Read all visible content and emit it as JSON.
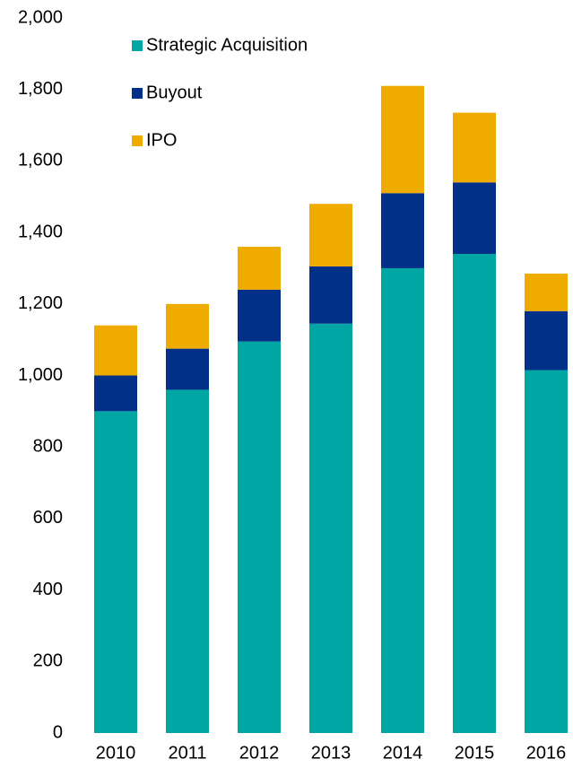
{
  "chart_data": {
    "type": "stacked_bar",
    "categories": [
      "2010",
      "2011",
      "2012",
      "2013",
      "2014",
      "2015",
      "2016"
    ],
    "series": [
      {
        "name": "Strategic Acquisition",
        "color": "#00a6a4",
        "values": [
          900,
          960,
          1095,
          1145,
          1300,
          1340,
          1015
        ]
      },
      {
        "name": "Buyout",
        "color": "#003087",
        "values": [
          100,
          115,
          145,
          160,
          210,
          200,
          165
        ]
      },
      {
        "name": "IPO",
        "color": "#f0ab00",
        "values": [
          140,
          125,
          120,
          175,
          300,
          195,
          105
        ]
      }
    ],
    "ylim": [
      0,
      2000
    ],
    "yticks": [
      0,
      200,
      400,
      600,
      800,
      {
        "value": 1000,
        "label": "1,000"
      },
      {
        "value": 1200,
        "label": "1,200"
      },
      {
        "value": 1400,
        "label": "1,400"
      },
      {
        "value": 1600,
        "label": "1,600"
      },
      {
        "value": 1800,
        "label": "1,800"
      },
      {
        "value": 2000,
        "label": "2,000"
      }
    ],
    "grid": false,
    "legend": "top-left"
  }
}
